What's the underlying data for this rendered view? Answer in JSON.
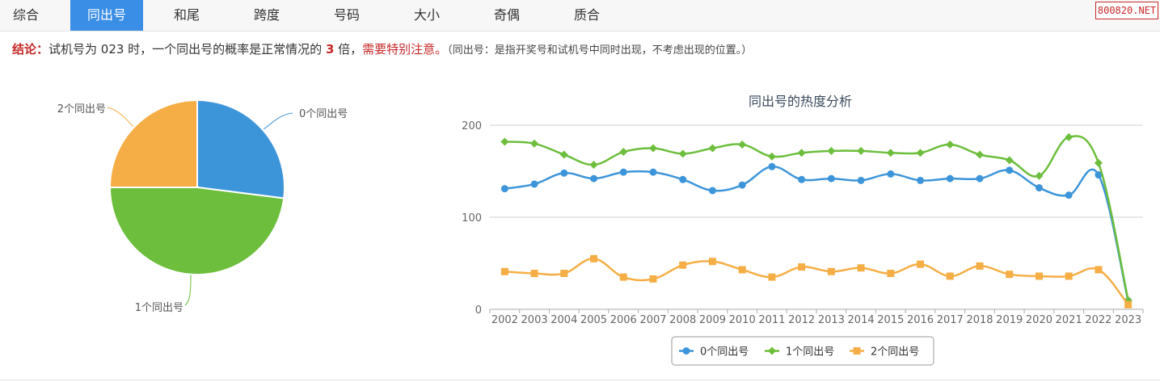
{
  "tabs": [
    {
      "label": "综合",
      "active": false
    },
    {
      "label": "同出号",
      "active": true
    },
    {
      "label": "和尾",
      "active": false
    },
    {
      "label": "跨度",
      "active": false
    },
    {
      "label": "号码",
      "active": false
    },
    {
      "label": "大小",
      "active": false
    },
    {
      "label": "奇偶",
      "active": false
    },
    {
      "label": "质合",
      "active": false
    }
  ],
  "brand": "800820.NET",
  "conclusion": {
    "label": "结论：",
    "text1": "试机号为 023 时，一个同出号的概率是正常情况的 ",
    "multiple": "3",
    "text2": " 倍，",
    "warning": "需要特别注意。",
    "note": "（同出号：是指开奖号和试机号中同时出现，不考虑出现的位置。）"
  },
  "colors": {
    "s0": "#3d95d9",
    "s1": "#6cbe3c",
    "s2": "#f5ae45"
  },
  "chart_data": [
    {
      "type": "pie",
      "labels": [
        "0个同出号",
        "1个同出号",
        "2个同出号"
      ],
      "values": [
        27,
        48,
        25
      ]
    },
    {
      "type": "line",
      "title": "同出号的热度分析",
      "x": [
        "2002",
        "2003",
        "2004",
        "2005",
        "2006",
        "2007",
        "2008",
        "2009",
        "2010",
        "2011",
        "2012",
        "2013",
        "2014",
        "2015",
        "2016",
        "2017",
        "2018",
        "2019",
        "2020",
        "2021",
        "2022",
        "2023"
      ],
      "ylim": [
        0,
        200
      ],
      "yticks": [
        0,
        100,
        200
      ],
      "grid": true,
      "legend": "bottom-center",
      "series": [
        {
          "name": "0个同出号",
          "values": [
            131,
            136,
            148,
            142,
            149,
            149,
            141,
            129,
            135,
            155,
            141,
            142,
            140,
            147,
            140,
            142,
            142,
            151,
            132,
            124,
            146,
            9
          ]
        },
        {
          "name": "1个同出号",
          "values": [
            182,
            180,
            168,
            157,
            171,
            175,
            169,
            175,
            179,
            166,
            170,
            172,
            172,
            170,
            170,
            179,
            168,
            162,
            145,
            187,
            159,
            10
          ]
        },
        {
          "name": "2个同出号",
          "values": [
            41,
            39,
            39,
            55,
            35,
            33,
            48,
            52,
            43,
            35,
            46,
            41,
            45,
            39,
            49,
            36,
            47,
            38,
            36,
            36,
            43,
            5
          ]
        }
      ]
    }
  ]
}
